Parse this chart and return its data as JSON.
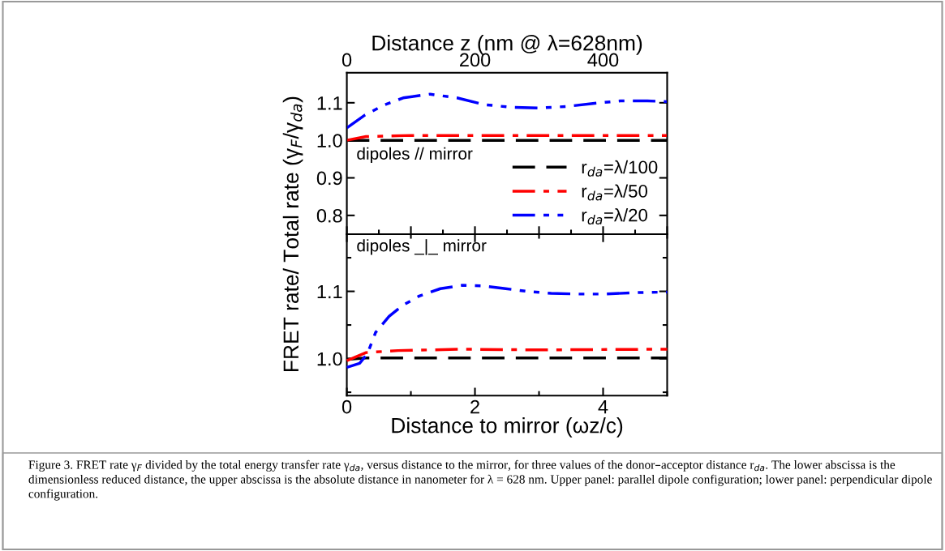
{
  "chart_data": [
    {
      "type": "line",
      "x2label": "Distance z (nm @ λ=628nm)",
      "x2lim": [
        0,
        500
      ],
      "x2ticks": [
        0,
        200,
        400
      ],
      "xlim": [
        0,
        5
      ],
      "ylim": [
        0.75,
        1.18
      ],
      "yticks": [
        {
          "value": 0.8,
          "label": "0.8"
        },
        {
          "value": 0.9,
          "label": "0.9"
        },
        {
          "value": 1.0,
          "label": "1.0"
        },
        {
          "value": 1.1,
          "label": "1.1"
        }
      ],
      "tick_labels": "y",
      "ylabel": "FRET rate/ Total rate (γ$_{F}$/γ$_{da}$)",
      "legend": "bottom right",
      "grid": false,
      "annotations": [
        "dipoles // mirror"
      ],
      "series": [
        {
          "name": "r$_{da}$=λ/100",
          "color": "#000000",
          "line_style": "dashed",
          "x": [
            0,
            5
          ],
          "values": [
            1.0,
            1.0
          ]
        },
        {
          "name": "r$_{da}$=λ/50",
          "color": "#ff0000",
          "line_style": "dashdot",
          "x": [
            0,
            0.3,
            1.0,
            2.0,
            3.0,
            4.0,
            5.0
          ],
          "values": [
            1.0,
            1.01,
            1.013,
            1.013,
            1.013,
            1.013,
            1.013
          ]
        },
        {
          "name": "r$_{da}$=λ/20",
          "color": "#0000ff",
          "line_style": "dashdotdot",
          "x": [
            0,
            0.28,
            0.58,
            0.88,
            1.3,
            1.72,
            2.15,
            2.57,
            3.0,
            3.42,
            3.84,
            4.27,
            4.69,
            5.0
          ],
          "values": [
            1.033,
            1.067,
            1.094,
            1.113,
            1.123,
            1.113,
            1.095,
            1.088,
            1.086,
            1.09,
            1.098,
            1.105,
            1.105,
            1.103
          ]
        }
      ]
    },
    {
      "type": "line",
      "xlabel": "Distance to mirror (ωz/c)",
      "xlim": [
        0,
        5
      ],
      "xticks": [
        0,
        2,
        4
      ],
      "ylim": [
        0.945,
        1.185
      ],
      "yticks": [
        {
          "value": 1.0,
          "label": "1.0"
        },
        {
          "value": 1.1,
          "label": "1.1"
        }
      ],
      "grid": false,
      "annotations": [
        "dipoles _|_ mirror",
        "Figure 3. FRET rate γ$_{F}$ divided by the total energy transfer rate γ$_{da}$, versus distance to the mirror, for three values of the donor–acceptor distance r$_{da}$. The lower abscissa is the dimensionless reduced distance, the upper abscissa is the absolute distance in nanometer for λ = 628 nm. Upper panel: parallel dipole configuration; lower panel: perpendicular dipole configuration."
      ],
      "series": [
        {
          "color": "#000000",
          "line_style": "dashed",
          "x": [
            0,
            0.3,
            5
          ],
          "values": [
            0.999,
            1.001,
            1.001
          ]
        },
        {
          "color": "#ff0000",
          "line_style": "dashdot",
          "x": [
            0,
            0.3,
            0.8,
            1.8,
            3.0,
            5.0
          ],
          "values": [
            0.997,
            1.009,
            1.012,
            1.014,
            1.013,
            1.014
          ]
        },
        {
          "color": "#0000ff",
          "line_style": "dashdotdot",
          "x": [
            0,
            0.2,
            0.32,
            0.45,
            0.66,
            0.87,
            1.13,
            1.46,
            1.8,
            2.14,
            2.48,
            2.81,
            3.19,
            3.62,
            4.04,
            4.46,
            5.0
          ],
          "values": [
            0.987,
            0.993,
            1.007,
            1.039,
            1.063,
            1.079,
            1.093,
            1.104,
            1.109,
            1.108,
            1.104,
            1.1,
            1.097,
            1.096,
            1.096,
            1.098,
            1.099
          ]
        }
      ]
    }
  ]
}
